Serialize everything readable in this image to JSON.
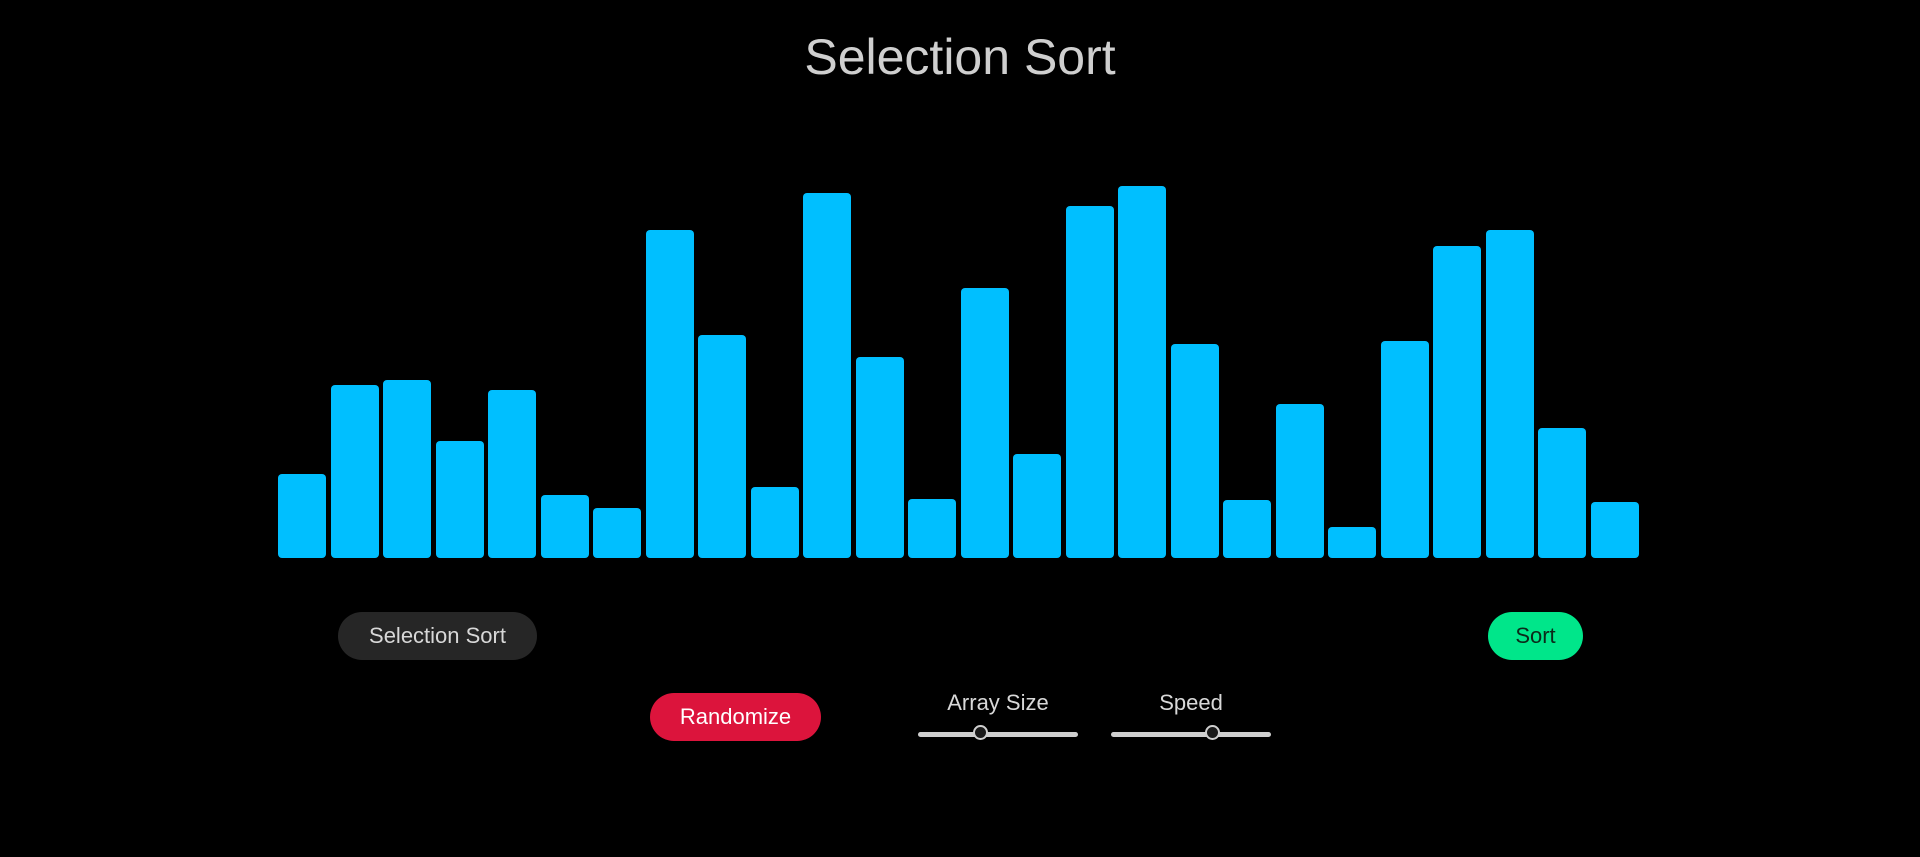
{
  "page": {
    "title": "Selection Sort"
  },
  "controls": {
    "algorithm_label": "Selection Sort",
    "sort_label": "Sort",
    "randomize_label": "Randomize",
    "array_size": {
      "label": "Array Size",
      "value_fraction": 0.38
    },
    "speed": {
      "label": "Speed",
      "value_fraction": 0.65
    }
  },
  "colors": {
    "bar": "#00bfff",
    "sort_button": "#00e68a",
    "randomize_button": "#dc143c",
    "algorithm_select": "#262626"
  },
  "chart_data": {
    "type": "bar",
    "values": [
      84,
      173,
      178,
      117,
      168,
      63,
      50,
      329,
      224,
      71,
      366,
      202,
      59,
      271,
      104,
      353,
      373,
      215,
      58,
      154,
      31,
      218,
      313,
      329,
      130,
      56
    ],
    "ylim": [
      0,
      373
    ],
    "grid": false,
    "legend": "none"
  }
}
